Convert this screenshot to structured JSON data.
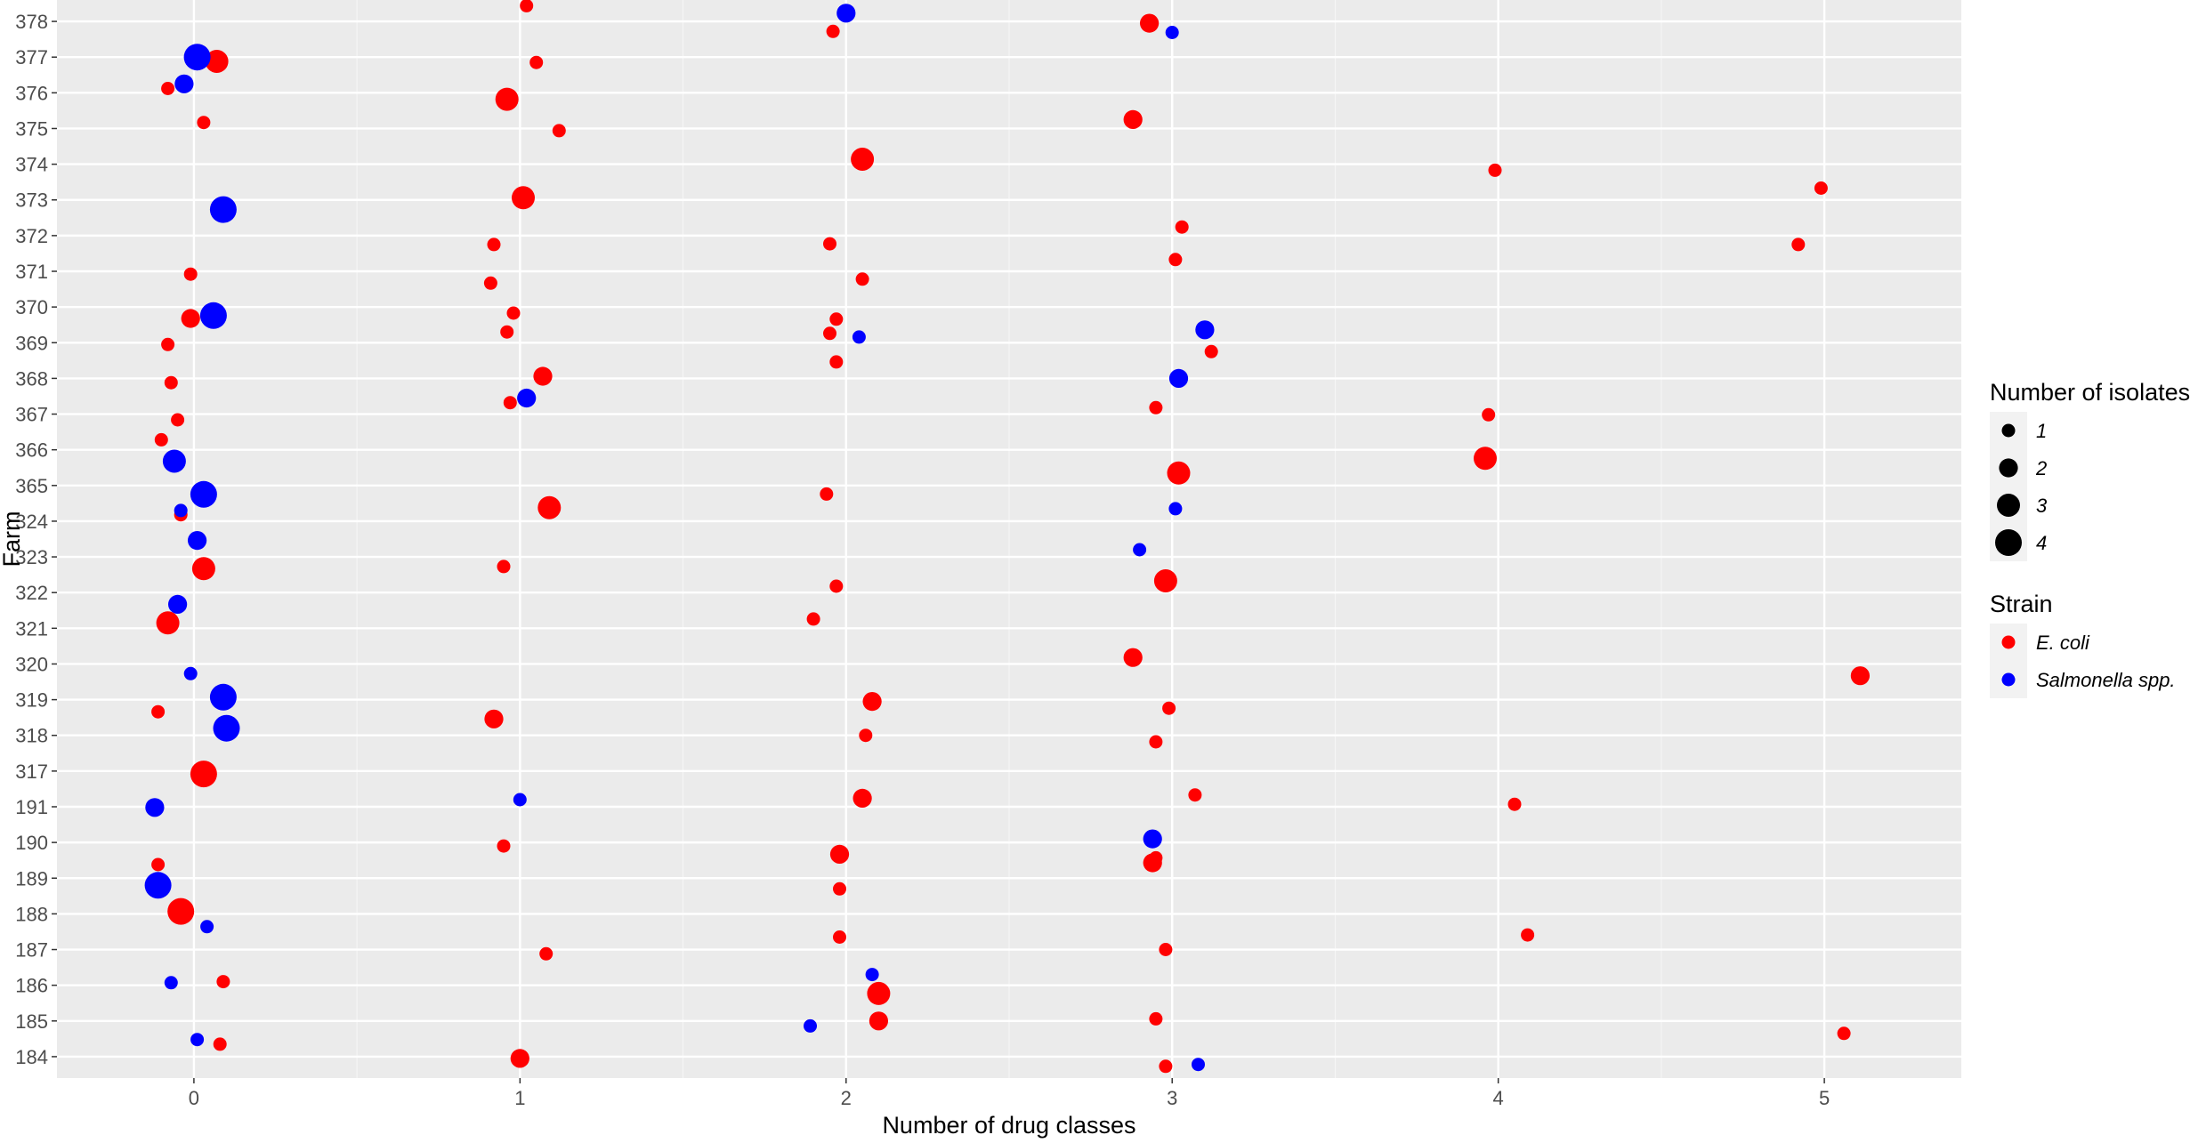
{
  "chart_data": {
    "type": "scatter",
    "xlabel": "Number of drug classes",
    "ylabel": "Farm",
    "xlim": [
      -0.42,
      5.42
    ],
    "x_ticks": [
      0,
      1,
      2,
      3,
      4,
      5
    ],
    "x_tick_labels": [
      "0",
      "1",
      "2",
      "3",
      "4",
      "5"
    ],
    "y_categories": [
      "184",
      "185",
      "186",
      "187",
      "188",
      "189",
      "190",
      "191",
      "317",
      "318",
      "319",
      "320",
      "321",
      "322",
      "323",
      "324",
      "365",
      "366",
      "367",
      "368",
      "369",
      "370",
      "371",
      "372",
      "373",
      "374",
      "375",
      "376",
      "377",
      "378"
    ],
    "grid": true,
    "legend_placement": "right",
    "size_legend": {
      "title": "Number of isolates",
      "levels": [
        1,
        2,
        3,
        4
      ],
      "labels": [
        "1",
        "2",
        "3",
        "4"
      ]
    },
    "color_legend": {
      "title": "Strain",
      "entries": [
        {
          "label": "E. coli",
          "color": "#ff0000"
        },
        {
          "label": "Salmonella spp.",
          "color": "#0000ff"
        }
      ]
    },
    "colors": {
      "panel": "#ebebeb",
      "grid_major": "#ffffff",
      "grid_minor": "#f5f5f5",
      "ecoli": "#ff0000",
      "salmonella": "#0000ff"
    },
    "series": [
      {
        "name": "E. coli",
        "color": "#ff0000",
        "points": [
          {
            "x": 1.02,
            "farm": "378",
            "dy": 0.44,
            "n": 1
          },
          {
            "x": 1.96,
            "farm": "378",
            "dy": -0.28,
            "n": 1
          },
          {
            "x": 2.93,
            "farm": "378",
            "dy": -0.05,
            "n": 2
          },
          {
            "x": 0.07,
            "farm": "377",
            "dy": -0.12,
            "n": 3
          },
          {
            "x": 1.05,
            "farm": "377",
            "dy": -0.15,
            "n": 1
          },
          {
            "x": -0.08,
            "farm": "376",
            "dy": 0.12,
            "n": 1
          },
          {
            "x": 0.96,
            "farm": "376",
            "dy": -0.18,
            "n": 3
          },
          {
            "x": 0.03,
            "farm": "375",
            "dy": 0.17,
            "n": 1
          },
          {
            "x": 1.12,
            "farm": "375",
            "dy": -0.06,
            "n": 1
          },
          {
            "x": 2.88,
            "farm": "375",
            "dy": 0.25,
            "n": 2
          },
          {
            "x": 2.05,
            "farm": "374",
            "dy": 0.14,
            "n": 3
          },
          {
            "x": 3.99,
            "farm": "374",
            "dy": -0.17,
            "n": 1
          },
          {
            "x": 1.01,
            "farm": "373",
            "dy": 0.06,
            "n": 3
          },
          {
            "x": 4.99,
            "farm": "373",
            "dy": 0.33,
            "n": 1
          },
          {
            "x": 3.03,
            "farm": "372",
            "dy": 0.24,
            "n": 1
          },
          {
            "x": 0.92,
            "farm": "372",
            "dy": -0.25,
            "n": 1
          },
          {
            "x": 1.95,
            "farm": "372",
            "dy": -0.23,
            "n": 1
          },
          {
            "x": 4.92,
            "farm": "372",
            "dy": -0.25,
            "n": 1
          },
          {
            "x": 3.01,
            "farm": "371",
            "dy": 0.33,
            "n": 1
          },
          {
            "x": -0.01,
            "farm": "371",
            "dy": -0.08,
            "n": 1
          },
          {
            "x": 0.91,
            "farm": "371",
            "dy": -0.33,
            "n": 1
          },
          {
            "x": 2.05,
            "farm": "371",
            "dy": -0.22,
            "n": 1
          },
          {
            "x": 0.98,
            "farm": "370",
            "dy": -0.17,
            "n": 1
          },
          {
            "x": -0.01,
            "farm": "370",
            "dy": -0.32,
            "n": 2
          },
          {
            "x": 1.97,
            "farm": "370",
            "dy": -0.34,
            "n": 1
          },
          {
            "x": 0.96,
            "farm": "369",
            "dy": 0.3,
            "n": 1
          },
          {
            "x": 1.95,
            "farm": "369",
            "dy": 0.26,
            "n": 1
          },
          {
            "x": -0.08,
            "farm": "369",
            "dy": -0.05,
            "n": 1
          },
          {
            "x": 3.12,
            "farm": "369",
            "dy": -0.25,
            "n": 1
          },
          {
            "x": 1.07,
            "farm": "368",
            "dy": 0.06,
            "n": 2
          },
          {
            "x": 1.97,
            "farm": "368",
            "dy": 0.46,
            "n": 1
          },
          {
            "x": -0.07,
            "farm": "368",
            "dy": -0.12,
            "n": 1
          },
          {
            "x": 0.97,
            "farm": "367",
            "dy": 0.32,
            "n": 1
          },
          {
            "x": 2.95,
            "farm": "367",
            "dy": 0.18,
            "n": 1
          },
          {
            "x": -0.05,
            "farm": "367",
            "dy": -0.16,
            "n": 1
          },
          {
            "x": 3.97,
            "farm": "367",
            "dy": -0.02,
            "n": 1
          },
          {
            "x": -0.1,
            "farm": "366",
            "dy": 0.28,
            "n": 1
          },
          {
            "x": 3.96,
            "farm": "366",
            "dy": -0.24,
            "n": 3
          },
          {
            "x": 3.02,
            "farm": "365",
            "dy": 0.35,
            "n": 3
          },
          {
            "x": 1.94,
            "farm": "365",
            "dy": -0.24,
            "n": 1
          },
          {
            "x": -0.04,
            "farm": "324",
            "dy": 0.18,
            "n": 1
          },
          {
            "x": 1.09,
            "farm": "324",
            "dy": 0.38,
            "n": 3
          },
          {
            "x": 0.03,
            "farm": "323",
            "dy": -0.33,
            "n": 3
          },
          {
            "x": 0.95,
            "farm": "323",
            "dy": -0.27,
            "n": 1
          },
          {
            "x": 2.98,
            "farm": "322",
            "dy": 0.33,
            "n": 3
          },
          {
            "x": 1.97,
            "farm": "322",
            "dy": 0.18,
            "n": 1
          },
          {
            "x": -0.08,
            "farm": "321",
            "dy": 0.15,
            "n": 3
          },
          {
            "x": 1.9,
            "farm": "321",
            "dy": 0.26,
            "n": 1
          },
          {
            "x": 2.88,
            "farm": "320",
            "dy": 0.18,
            "n": 2
          },
          {
            "x": 5.11,
            "farm": "320",
            "dy": -0.33,
            "n": 2
          },
          {
            "x": 2.08,
            "farm": "319",
            "dy": -0.05,
            "n": 2
          },
          {
            "x": -0.11,
            "farm": "319",
            "dy": -0.34,
            "n": 1
          },
          {
            "x": 2.99,
            "farm": "319",
            "dy": -0.24,
            "n": 1
          },
          {
            "x": 0.92,
            "farm": "318",
            "dy": 0.46,
            "n": 2
          },
          {
            "x": 2.06,
            "farm": "318",
            "dy": 0.0,
            "n": 1
          },
          {
            "x": 2.95,
            "farm": "318",
            "dy": -0.18,
            "n": 1
          },
          {
            "x": 0.03,
            "farm": "317",
            "dy": -0.08,
            "n": 4
          },
          {
            "x": 2.05,
            "farm": "191",
            "dy": 0.24,
            "n": 2
          },
          {
            "x": 3.07,
            "farm": "191",
            "dy": 0.33,
            "n": 1
          },
          {
            "x": 4.05,
            "farm": "191",
            "dy": 0.07,
            "n": 1
          },
          {
            "x": 1.98,
            "farm": "190",
            "dy": -0.33,
            "n": 2
          },
          {
            "x": 2.95,
            "farm": "190",
            "dy": -0.43,
            "n": 1
          },
          {
            "x": 0.95,
            "farm": "190",
            "dy": -0.1,
            "n": 1
          },
          {
            "x": -0.11,
            "farm": "189",
            "dy": 0.38,
            "n": 1
          },
          {
            "x": 2.94,
            "farm": "189",
            "dy": 0.43,
            "n": 2
          },
          {
            "x": 1.98,
            "farm": "189",
            "dy": -0.3,
            "n": 1
          },
          {
            "x": -0.04,
            "farm": "188",
            "dy": 0.07,
            "n": 4
          },
          {
            "x": 1.98,
            "farm": "187",
            "dy": 0.35,
            "n": 1
          },
          {
            "x": 4.09,
            "farm": "187",
            "dy": 0.41,
            "n": 1
          },
          {
            "x": 1.08,
            "farm": "187",
            "dy": -0.12,
            "n": 1
          },
          {
            "x": 2.98,
            "farm": "187",
            "dy": 0.0,
            "n": 1
          },
          {
            "x": 0.09,
            "farm": "186",
            "dy": 0.1,
            "n": 1
          },
          {
            "x": 2.1,
            "farm": "186",
            "dy": -0.23,
            "n": 3
          },
          {
            "x": 2.1,
            "farm": "185",
            "dy": 0.0,
            "n": 2
          },
          {
            "x": 2.95,
            "farm": "185",
            "dy": 0.06,
            "n": 1
          },
          {
            "x": 5.06,
            "farm": "185",
            "dy": -0.35,
            "n": 1
          },
          {
            "x": 0.08,
            "farm": "184",
            "dy": 0.35,
            "n": 1
          },
          {
            "x": 1.0,
            "farm": "184",
            "dy": -0.05,
            "n": 2
          },
          {
            "x": 2.98,
            "farm": "184",
            "dy": -0.27,
            "n": 1
          }
        ]
      },
      {
        "name": "Salmonella spp.",
        "color": "#0000ff",
        "points": [
          {
            "x": 2.0,
            "farm": "378",
            "dy": 0.23,
            "n": 2
          },
          {
            "x": 3.0,
            "farm": "378",
            "dy": -0.31,
            "n": 1
          },
          {
            "x": 0.01,
            "farm": "377",
            "dy": 0.0,
            "n": 4
          },
          {
            "x": -0.03,
            "farm": "376",
            "dy": 0.25,
            "n": 2
          },
          {
            "x": 0.09,
            "farm": "373",
            "dy": -0.27,
            "n": 4
          },
          {
            "x": 0.06,
            "farm": "370",
            "dy": -0.24,
            "n": 4
          },
          {
            "x": 2.04,
            "farm": "369",
            "dy": 0.16,
            "n": 1
          },
          {
            "x": 3.1,
            "farm": "369",
            "dy": 0.36,
            "n": 2
          },
          {
            "x": 3.02,
            "farm": "368",
            "dy": 0.0,
            "n": 2
          },
          {
            "x": 1.02,
            "farm": "367",
            "dy": 0.45,
            "n": 2
          },
          {
            "x": -0.06,
            "farm": "366",
            "dy": -0.32,
            "n": 3
          },
          {
            "x": 0.03,
            "farm": "365",
            "dy": -0.25,
            "n": 4
          },
          {
            "x": -0.04,
            "farm": "324",
            "dy": 0.3,
            "n": 1
          },
          {
            "x": 3.01,
            "farm": "324",
            "dy": 0.35,
            "n": 1
          },
          {
            "x": 0.01,
            "farm": "323",
            "dy": 0.46,
            "n": 2
          },
          {
            "x": 2.9,
            "farm": "323",
            "dy": 0.2,
            "n": 1
          },
          {
            "x": -0.05,
            "farm": "322",
            "dy": -0.33,
            "n": 2
          },
          {
            "x": -0.01,
            "farm": "320",
            "dy": -0.27,
            "n": 1
          },
          {
            "x": 0.09,
            "farm": "319",
            "dy": 0.07,
            "n": 4
          },
          {
            "x": 0.1,
            "farm": "318",
            "dy": 0.2,
            "n": 4
          },
          {
            "x": -0.12,
            "farm": "191",
            "dy": -0.02,
            "n": 2
          },
          {
            "x": 1.0,
            "farm": "191",
            "dy": 0.2,
            "n": 1
          },
          {
            "x": 2.94,
            "farm": "190",
            "dy": 0.1,
            "n": 2
          },
          {
            "x": -0.11,
            "farm": "189",
            "dy": -0.2,
            "n": 4
          },
          {
            "x": 0.04,
            "farm": "188",
            "dy": -0.36,
            "n": 1
          },
          {
            "x": -0.07,
            "farm": "186",
            "dy": 0.07,
            "n": 1
          },
          {
            "x": 2.08,
            "farm": "186",
            "dy": 0.3,
            "n": 1
          },
          {
            "x": 1.89,
            "farm": "185",
            "dy": -0.14,
            "n": 1
          },
          {
            "x": 0.01,
            "farm": "184",
            "dy": 0.48,
            "n": 1
          },
          {
            "x": 3.08,
            "farm": "184",
            "dy": -0.22,
            "n": 1
          }
        ]
      }
    ]
  }
}
